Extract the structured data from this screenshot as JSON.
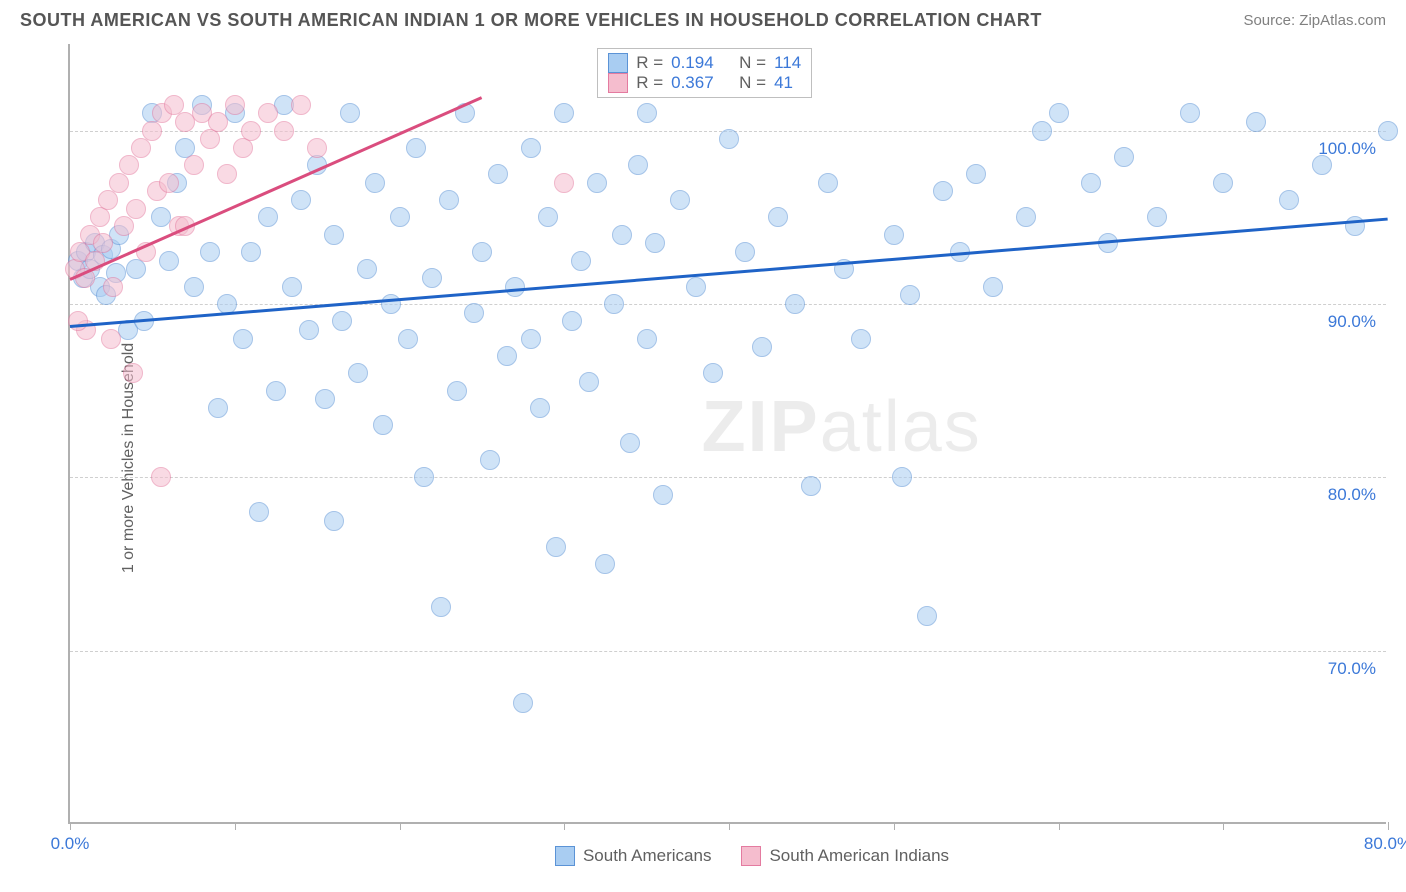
{
  "header": {
    "title": "SOUTH AMERICAN VS SOUTH AMERICAN INDIAN 1 OR MORE VEHICLES IN HOUSEHOLD CORRELATION CHART",
    "source": "Source: ZipAtlas.com"
  },
  "chart": {
    "type": "scatter",
    "ylabel": "1 or more Vehicles in Household",
    "watermark": "ZIPatlas",
    "background_color": "#ffffff",
    "grid_color": "#cfcfcf",
    "axis_color": "#b0b0b0",
    "xlim": [
      0,
      80
    ],
    "ylim": [
      60,
      105
    ],
    "x_ticks": [
      0,
      10,
      20,
      30,
      40,
      50,
      60,
      70,
      80
    ],
    "x_tick_labels": {
      "0": "0.0%",
      "80": "80.0%"
    },
    "y_gridlines": [
      70,
      80,
      90,
      100
    ],
    "y_tick_labels": {
      "70": "70.0%",
      "80": "80.0%",
      "90": "90.0%",
      "100": "100.0%"
    },
    "label_color": "#3b78d8",
    "label_fontsize": 17,
    "axis_label_color": "#606060",
    "point_radius": 10,
    "point_opacity": 0.55,
    "series": [
      {
        "name": "South Americans",
        "fill": "#a9cdf2",
        "stroke": "#5b93d6",
        "trend_color": "#1f63c7",
        "R": "0.194",
        "N": "114",
        "trend": {
          "x1": 0,
          "y1": 88.8,
          "x2": 80,
          "y2": 95.0
        },
        "points": [
          [
            0.5,
            92.5
          ],
          [
            0.8,
            91.5
          ],
          [
            1.0,
            93.0
          ],
          [
            1.2,
            92.0
          ],
          [
            1.5,
            93.5
          ],
          [
            1.8,
            91.0
          ],
          [
            2.0,
            92.8
          ],
          [
            2.2,
            90.5
          ],
          [
            2.5,
            93.2
          ],
          [
            2.8,
            91.8
          ],
          [
            3.0,
            94.0
          ],
          [
            3.5,
            88.5
          ],
          [
            4.0,
            92.0
          ],
          [
            4.5,
            89.0
          ],
          [
            5.0,
            101.0
          ],
          [
            5.5,
            95.0
          ],
          [
            6.0,
            92.5
          ],
          [
            6.5,
            97.0
          ],
          [
            7.0,
            99.0
          ],
          [
            7.5,
            91.0
          ],
          [
            8.0,
            101.5
          ],
          [
            8.5,
            93.0
          ],
          [
            9.0,
            84.0
          ],
          [
            9.5,
            90.0
          ],
          [
            10.0,
            101.0
          ],
          [
            10.5,
            88.0
          ],
          [
            11.0,
            93.0
          ],
          [
            11.5,
            78.0
          ],
          [
            12.0,
            95.0
          ],
          [
            12.5,
            85.0
          ],
          [
            13.0,
            101.5
          ],
          [
            13.5,
            91.0
          ],
          [
            14.0,
            96.0
          ],
          [
            14.5,
            88.5
          ],
          [
            15.0,
            98.0
          ],
          [
            15.5,
            84.5
          ],
          [
            16.0,
            94.0
          ],
          [
            16.5,
            89.0
          ],
          [
            17.0,
            101.0
          ],
          [
            17.5,
            86.0
          ],
          [
            18.0,
            92.0
          ],
          [
            18.5,
            97.0
          ],
          [
            19.0,
            83.0
          ],
          [
            19.5,
            90.0
          ],
          [
            20.0,
            95.0
          ],
          [
            20.5,
            88.0
          ],
          [
            21.0,
            99.0
          ],
          [
            21.5,
            80.0
          ],
          [
            22.0,
            91.5
          ],
          [
            22.5,
            72.5
          ],
          [
            23.0,
            96.0
          ],
          [
            23.5,
            85.0
          ],
          [
            24.0,
            101.0
          ],
          [
            24.5,
            89.5
          ],
          [
            25.0,
            93.0
          ],
          [
            25.5,
            81.0
          ],
          [
            26.0,
            97.5
          ],
          [
            26.5,
            87.0
          ],
          [
            27.0,
            91.0
          ],
          [
            27.5,
            67.0
          ],
          [
            28.0,
            99.0
          ],
          [
            28.5,
            84.0
          ],
          [
            29.0,
            95.0
          ],
          [
            29.5,
            76.0
          ],
          [
            30.0,
            101.0
          ],
          [
            30.5,
            89.0
          ],
          [
            31.0,
            92.5
          ],
          [
            31.5,
            85.5
          ],
          [
            32.0,
            97.0
          ],
          [
            32.5,
            75.0
          ],
          [
            33.0,
            90.0
          ],
          [
            33.5,
            94.0
          ],
          [
            34.0,
            82.0
          ],
          [
            34.5,
            98.0
          ],
          [
            35.0,
            88.0
          ],
          [
            35.5,
            93.5
          ],
          [
            36.0,
            79.0
          ],
          [
            37.0,
            96.0
          ],
          [
            38.0,
            91.0
          ],
          [
            39.0,
            86.0
          ],
          [
            40.0,
            99.5
          ],
          [
            41.0,
            93.0
          ],
          [
            42.0,
            87.5
          ],
          [
            43.0,
            95.0
          ],
          [
            44.0,
            90.0
          ],
          [
            45.0,
            79.5
          ],
          [
            46.0,
            97.0
          ],
          [
            47.0,
            92.0
          ],
          [
            48.0,
            88.0
          ],
          [
            50.0,
            94.0
          ],
          [
            51.0,
            90.5
          ],
          [
            52.0,
            72.0
          ],
          [
            53.0,
            96.5
          ],
          [
            54.0,
            93.0
          ],
          [
            55.0,
            97.5
          ],
          [
            56.0,
            91.0
          ],
          [
            58.0,
            95.0
          ],
          [
            59.0,
            100.0
          ],
          [
            60.0,
            101.0
          ],
          [
            62.0,
            97.0
          ],
          [
            63.0,
            93.5
          ],
          [
            64.0,
            98.5
          ],
          [
            66.0,
            95.0
          ],
          [
            68.0,
            101.0
          ],
          [
            70.0,
            97.0
          ],
          [
            72.0,
            100.5
          ],
          [
            74.0,
            96.0
          ],
          [
            76.0,
            98.0
          ],
          [
            78.0,
            94.5
          ],
          [
            80.0,
            100.0
          ],
          [
            50.5,
            80.0
          ],
          [
            35.0,
            101.0
          ],
          [
            28.0,
            88.0
          ],
          [
            16.0,
            77.5
          ]
        ]
      },
      {
        "name": "South American Indians",
        "fill": "#f5bdce",
        "stroke": "#e47ba0",
        "trend_color": "#da4d7e",
        "R": "0.367",
        "N": "41",
        "trend": {
          "x1": 0,
          "y1": 91.5,
          "x2": 25,
          "y2": 102.0
        },
        "points": [
          [
            0.3,
            92.0
          ],
          [
            0.6,
            93.0
          ],
          [
            0.9,
            91.5
          ],
          [
            1.2,
            94.0
          ],
          [
            1.5,
            92.5
          ],
          [
            1.8,
            95.0
          ],
          [
            2.0,
            93.5
          ],
          [
            2.3,
            96.0
          ],
          [
            2.6,
            91.0
          ],
          [
            3.0,
            97.0
          ],
          [
            3.3,
            94.5
          ],
          [
            3.6,
            98.0
          ],
          [
            4.0,
            95.5
          ],
          [
            4.3,
            99.0
          ],
          [
            4.6,
            93.0
          ],
          [
            5.0,
            100.0
          ],
          [
            5.3,
            96.5
          ],
          [
            5.6,
            101.0
          ],
          [
            6.0,
            97.0
          ],
          [
            6.3,
            101.5
          ],
          [
            6.6,
            94.5
          ],
          [
            7.0,
            100.5
          ],
          [
            7.5,
            98.0
          ],
          [
            8.0,
            101.0
          ],
          [
            8.5,
            99.5
          ],
          [
            9.0,
            100.5
          ],
          [
            9.5,
            97.5
          ],
          [
            10.0,
            101.5
          ],
          [
            10.5,
            99.0
          ],
          [
            11.0,
            100.0
          ],
          [
            2.5,
            88.0
          ],
          [
            3.8,
            86.0
          ],
          [
            1.0,
            88.5
          ],
          [
            5.5,
            80.0
          ],
          [
            0.5,
            89.0
          ],
          [
            12.0,
            101.0
          ],
          [
            13.0,
            100.0
          ],
          [
            14.0,
            101.5
          ],
          [
            15.0,
            99.0
          ],
          [
            7.0,
            94.5
          ],
          [
            30.0,
            97.0
          ]
        ]
      }
    ],
    "legend_bottom": [
      {
        "label": "South Americans",
        "fill": "#a9cdf2",
        "stroke": "#5b93d6"
      },
      {
        "label": "South American Indians",
        "fill": "#f5bdce",
        "stroke": "#e47ba0"
      }
    ]
  }
}
